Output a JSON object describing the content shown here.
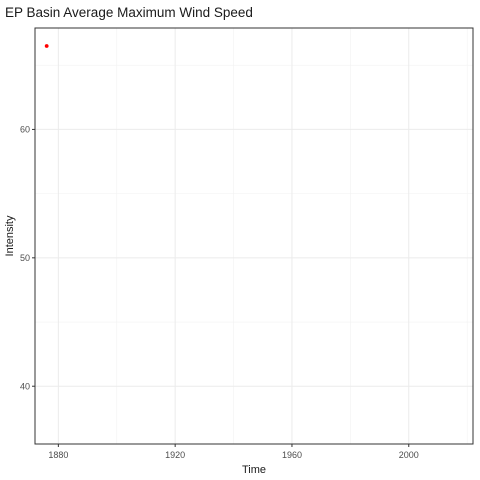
{
  "chart_data": {
    "type": "scatter",
    "title": "EP Basin Average Maximum Wind Speed",
    "xlabel": "Time",
    "ylabel": "Intensity",
    "xlim": [
      1872,
      2022
    ],
    "ylim": [
      35.5,
      67.9
    ],
    "x_ticks": [
      1880,
      1920,
      1960,
      2000
    ],
    "x_tick_labels": [
      "1880",
      "1920",
      "1960",
      "2000"
    ],
    "x_minor_ticks": [
      1900,
      1940,
      1980,
      2020
    ],
    "y_ticks": [
      40,
      50,
      60
    ],
    "y_tick_labels": [
      "40",
      "50",
      "60"
    ],
    "y_minor_ticks": [
      45,
      55,
      65
    ],
    "grid": true,
    "theme": "bw",
    "point_color": "#ff0000",
    "points": [
      {
        "x": 1876,
        "y": 66.5
      }
    ]
  }
}
